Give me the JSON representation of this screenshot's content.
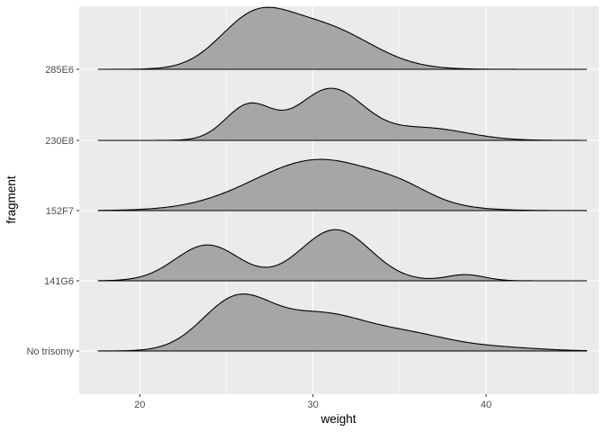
{
  "chart_data": {
    "type": "ridgeline",
    "xlabel": "weight",
    "ylabel": "fragment",
    "xlim": [
      16.5,
      46.5
    ],
    "x_major_ticks": [
      20,
      30,
      40
    ],
    "x_minor_ticks": [
      25,
      35,
      45
    ],
    "x_tick_labels": [
      "20",
      "30",
      "40"
    ],
    "x_range_of_curves": [
      17.6,
      45.8
    ],
    "fill_color": "#A6A6A6",
    "panel_color": "#EBEBEB",
    "grid": true,
    "height_scale": 0.88,
    "categories": [
      "No trisomy",
      "141G6",
      "152F7",
      "230E8",
      "285E6"
    ],
    "series": [
      {
        "name": "No trisomy",
        "components": [
          {
            "mean": 25.6,
            "sd": 2.0,
            "weight": 1.0
          },
          {
            "mean": 30.5,
            "sd": 2.5,
            "weight": 0.68
          },
          {
            "mean": 35.5,
            "sd": 2.4,
            "weight": 0.3
          },
          {
            "mean": 40.5,
            "sd": 2.5,
            "weight": 0.07
          }
        ]
      },
      {
        "name": "141G6",
        "components": [
          {
            "mean": 23.9,
            "sd": 1.85,
            "weight": 0.7
          },
          {
            "mean": 31.3,
            "sd": 2.0,
            "weight": 1.0
          },
          {
            "mean": 38.8,
            "sd": 1.1,
            "weight": 0.12
          }
        ]
      },
      {
        "name": "152F7",
        "components": [
          {
            "mean": 30.4,
            "sd": 3.8,
            "weight": 1.0
          },
          {
            "mean": 35.2,
            "sd": 1.6,
            "weight": 0.15
          }
        ]
      },
      {
        "name": "230E8",
        "components": [
          {
            "mean": 26.3,
            "sd": 1.35,
            "weight": 0.68
          },
          {
            "mean": 31.0,
            "sd": 1.9,
            "weight": 1.0
          },
          {
            "mean": 36.5,
            "sd": 2.4,
            "weight": 0.24
          }
        ]
      },
      {
        "name": "285E6",
        "components": [
          {
            "mean": 26.5,
            "sd": 2.0,
            "weight": 0.85
          },
          {
            "mean": 30.5,
            "sd": 2.8,
            "weight": 0.82
          }
        ]
      }
    ]
  }
}
